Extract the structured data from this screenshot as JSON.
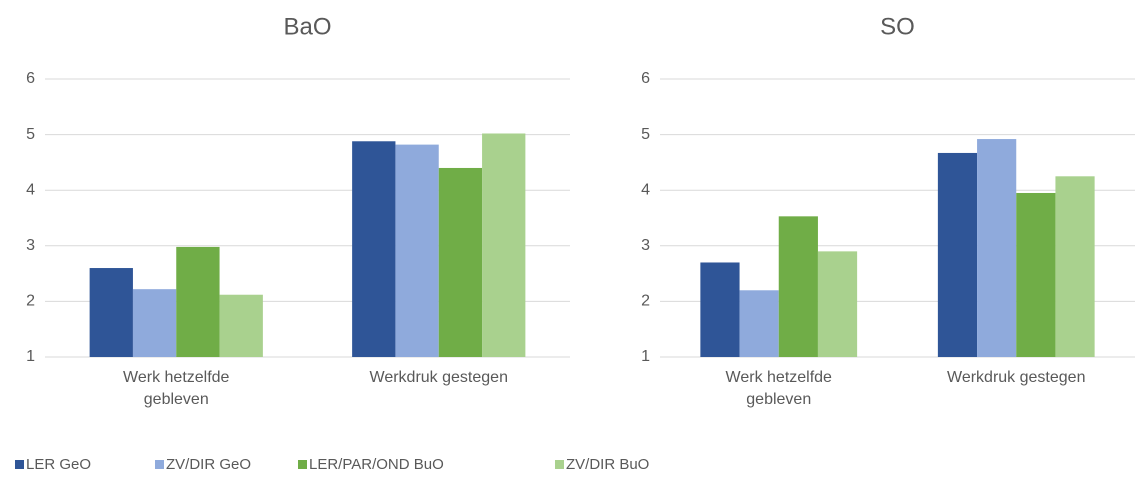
{
  "chart_data": [
    {
      "type": "bar",
      "title": "BaO",
      "categories": [
        "Werk hetzelfde gebleven",
        "Werkdruk gestegen"
      ],
      "series": [
        {
          "name": "LER GeO",
          "color": "#2f5597",
          "values": [
            2.6,
            4.88
          ]
        },
        {
          "name": "ZV/DIR GeO",
          "color": "#8faadc",
          "values": [
            2.22,
            4.82
          ]
        },
        {
          "name": "LER/PAR/OND BuO",
          "color": "#70ad47",
          "values": [
            2.98,
            4.4
          ]
        },
        {
          "name": "ZV/DIR BuO",
          "color": "#a9d18e",
          "values": [
            2.12,
            5.02
          ]
        }
      ],
      "ylim": [
        1,
        6
      ],
      "yticks": [
        1,
        2,
        3,
        4,
        5,
        6
      ],
      "grid": true,
      "legend": "bottom"
    },
    {
      "type": "bar",
      "title": "SO",
      "categories": [
        "Werk hetzelfde gebleven",
        "Werkdruk gestegen"
      ],
      "series": [
        {
          "values": [
            2.7,
            4.67
          ]
        },
        {
          "values": [
            2.2,
            4.92
          ]
        },
        {
          "values": [
            3.53,
            3.95
          ]
        },
        {
          "values": [
            2.9,
            4.25
          ]
        }
      ],
      "ylim": [
        1,
        6
      ],
      "yticks": [
        1,
        2,
        3,
        4,
        5,
        6
      ],
      "grid": true
    }
  ]
}
